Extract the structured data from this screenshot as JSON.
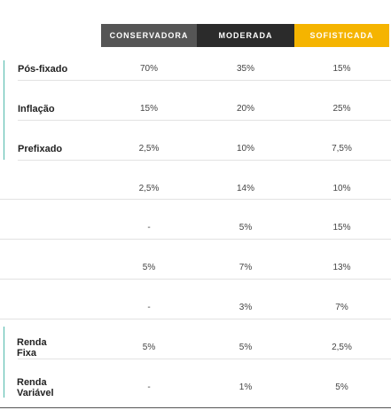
{
  "columns": [
    "CONSERVADORA",
    "MODERADA",
    "SOFISTICADA"
  ],
  "rows": [
    {
      "label": "Pós-fixado",
      "values": [
        "70%",
        "35%",
        "15%"
      ]
    },
    {
      "label": "Inflação",
      "values": [
        "15%",
        "20%",
        "25%"
      ]
    },
    {
      "label": "Prefixado",
      "values": [
        "2,5%",
        "10%",
        "7,5%"
      ]
    },
    {
      "label": "",
      "values": [
        "2,5%",
        "14%",
        "10%"
      ]
    },
    {
      "label": "",
      "values": [
        "-",
        "5%",
        "15%"
      ]
    },
    {
      "label": "",
      "values": [
        "5%",
        "7%",
        "13%"
      ]
    },
    {
      "label": "",
      "values": [
        "-",
        "3%",
        "7%"
      ]
    },
    {
      "label": "Renda Fixa",
      "values": [
        "5%",
        "5%",
        "2,5%"
      ]
    },
    {
      "label": "Renda Variável",
      "values": [
        "-",
        "1%",
        "5%"
      ]
    }
  ],
  "colors": {
    "conservadora": "#555555",
    "moderada": "#2b2b2b",
    "sofisticada": "#f5b400",
    "accent": "#4fb8ab"
  }
}
